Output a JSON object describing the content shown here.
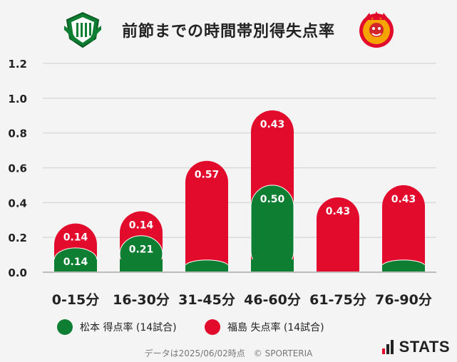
{
  "title": "前節までの時間帯別得失点率",
  "logos": {
    "left": "matsumoto-emblem-icon",
    "right": "fukushima-emblem-icon"
  },
  "colors": {
    "green": "#0e7e32",
    "red": "#e30b2c",
    "grid": "#d9d9d9",
    "background": "#f4f4f4"
  },
  "legend": {
    "green_label": "松本 得点率 (14試合)",
    "red_label": "福島 失点率 (14試合)"
  },
  "footer": "データは2025/06/02時点　© SPORTERIA",
  "brand": "STATS",
  "chart_data": {
    "type": "bar",
    "categories": [
      "0-15分",
      "16-30分",
      "31-45分",
      "46-60分",
      "61-75分",
      "76-90分"
    ],
    "series": [
      {
        "name": "松本 得点率 (14試合)",
        "color": "#0e7e32",
        "values": [
          0.14,
          0.21,
          0.07,
          0.5,
          0.0,
          0.07
        ],
        "labels": [
          "0.14",
          "0.21",
          "",
          "0.50",
          "",
          ""
        ]
      },
      {
        "name": "福島 失点率 (14試合)",
        "color": "#e30b2c",
        "values": [
          0.14,
          0.14,
          0.57,
          0.43,
          0.43,
          0.43
        ],
        "labels": [
          "0.14",
          "0.14",
          "0.57",
          "0.43",
          "0.43",
          "0.43"
        ]
      }
    ],
    "ylim": [
      0,
      1.2
    ],
    "yticks": [
      "0.0",
      "0.2",
      "0.4",
      "0.6",
      "0.8",
      "1.0",
      "1.2"
    ],
    "grid": true,
    "legend_position": "bottom"
  }
}
